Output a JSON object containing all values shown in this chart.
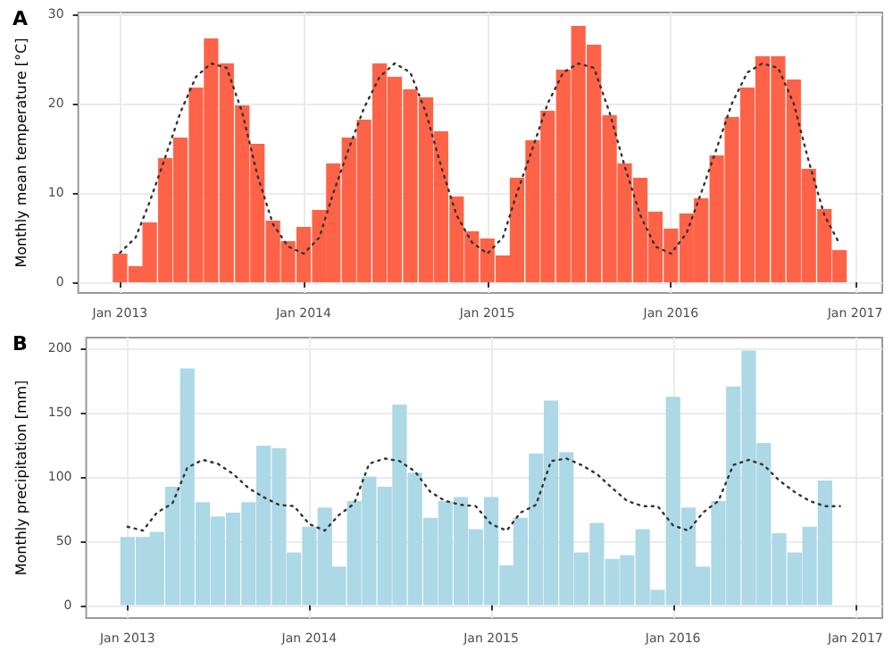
{
  "chart_data": [
    {
      "type": "bar",
      "title": "A",
      "ylabel": "Monthly mean temperature [°C]",
      "x": [
        "2013-01",
        "2013-02",
        "2013-03",
        "2013-04",
        "2013-05",
        "2013-06",
        "2013-07",
        "2013-08",
        "2013-09",
        "2013-10",
        "2013-11",
        "2013-12",
        "2014-01",
        "2014-02",
        "2014-03",
        "2014-04",
        "2014-05",
        "2014-06",
        "2014-07",
        "2014-08",
        "2014-09",
        "2014-10",
        "2014-11",
        "2014-12",
        "2015-01",
        "2015-02",
        "2015-03",
        "2015-04",
        "2015-05",
        "2015-06",
        "2015-07",
        "2015-08",
        "2015-09",
        "2015-10",
        "2015-11",
        "2015-12",
        "2016-01",
        "2016-02",
        "2016-03",
        "2016-04",
        "2016-05",
        "2016-06",
        "2016-07",
        "2016-08",
        "2016-09",
        "2016-10",
        "2016-11",
        "2016-12"
      ],
      "series": [
        {
          "color": "#ff6347",
          "values": [
            3.2,
            1.8,
            6.7,
            13.9,
            16.2,
            21.8,
            27.3,
            24.5,
            19.8,
            15.5,
            6.9,
            4.6,
            6.2,
            8.1,
            13.3,
            16.2,
            18.2,
            24.5,
            23.0,
            21.6,
            20.7,
            16.9,
            9.6,
            5.7,
            4.9,
            3.0,
            11.7,
            15.9,
            19.2,
            23.8,
            28.7,
            26.6,
            18.7,
            13.3,
            11.7,
            7.9,
            6.0,
            7.7,
            9.4,
            14.2,
            18.5,
            21.8,
            25.3,
            25.3,
            22.7,
            12.7,
            8.2,
            3.6
          ]
        },
        {
          "type": "line",
          "color": "#333333",
          "values": [
            3.3,
            5,
            9,
            14,
            19,
            23,
            24.5,
            24,
            19,
            12,
            6.5,
            4,
            3.2,
            5,
            10,
            15,
            19.5,
            23,
            24.5,
            23.5,
            19,
            13,
            7.5,
            4.5,
            3.2,
            5,
            10,
            15,
            20,
            23.5,
            24.5,
            24,
            19,
            13,
            7.5,
            4,
            3.2,
            5.5,
            10,
            15,
            20,
            23.5,
            24.5,
            24,
            20,
            13.5,
            7.5,
            4.3
          ]
        }
      ],
      "xlim": [
        "2012-10-10",
        "2017-02-24"
      ],
      "xticks": [
        {
          "value": "2013-01",
          "label": "Jan 2013"
        },
        {
          "value": "2014-01",
          "label": "Jan 2014"
        },
        {
          "value": "2015-01",
          "label": "Jan 2015"
        },
        {
          "value": "2016-01",
          "label": "Jan 2016"
        },
        {
          "value": "2017-01",
          "label": "Jan 2017"
        }
      ],
      "ylim": [
        -1.2,
        30.2
      ],
      "yticks": [
        0,
        10,
        20,
        30
      ],
      "grid": true,
      "marker": "none",
      "line_style": "dotted"
    },
    {
      "type": "bar",
      "title": "B",
      "ylabel": "Monthly precipitation [mm]",
      "x": [
        "2013-01",
        "2013-02",
        "2013-03",
        "2013-04",
        "2013-05",
        "2013-06",
        "2013-07",
        "2013-08",
        "2013-09",
        "2013-10",
        "2013-11",
        "2013-12",
        "2014-01",
        "2014-02",
        "2014-03",
        "2014-04",
        "2014-05",
        "2014-06",
        "2014-07",
        "2014-08",
        "2014-09",
        "2014-10",
        "2014-11",
        "2014-12",
        "2015-01",
        "2015-02",
        "2015-03",
        "2015-04",
        "2015-05",
        "2015-06",
        "2015-07",
        "2015-08",
        "2015-09",
        "2015-10",
        "2015-11",
        "2015-12",
        "2016-01",
        "2016-02",
        "2016-03",
        "2016-04",
        "2016-05",
        "2016-06",
        "2016-07",
        "2016-08",
        "2016-09",
        "2016-10",
        "2016-11",
        "2016-12"
      ],
      "series": [
        {
          "color": "#add8e6",
          "values": [
            53,
            53,
            57,
            92,
            184,
            80,
            69,
            72,
            80,
            124,
            122,
            41,
            61,
            76,
            30,
            81,
            100,
            92,
            156,
            103,
            68,
            81,
            84,
            59,
            84,
            31,
            68,
            118,
            159,
            119,
            41,
            64,
            36,
            39,
            59,
            12,
            162,
            76,
            30,
            81,
            170,
            198,
            126,
            56,
            41,
            61,
            97,
            0
          ]
        },
        {
          "type": "line",
          "color": "#333333",
          "values": [
            61,
            58,
            72,
            79,
            107,
            113,
            110,
            102,
            91,
            84,
            78,
            77,
            63,
            58,
            70,
            79,
            110,
            114,
            112,
            104,
            88,
            81,
            78,
            77,
            63,
            58,
            72,
            78,
            112,
            114,
            109,
            102,
            91,
            81,
            77,
            77,
            62,
            58,
            72,
            81,
            109,
            113,
            109,
            97,
            88,
            81,
            77,
            77
          ]
        }
      ],
      "xlim": [
        "2012-10-10",
        "2017-02-24"
      ],
      "xticks": [
        {
          "value": "2013-01",
          "label": "Jan 2013"
        },
        {
          "value": "2014-01",
          "label": "Jan 2014"
        },
        {
          "value": "2015-01",
          "label": "Jan 2015"
        },
        {
          "value": "2016-01",
          "label": "Jan 2016"
        },
        {
          "value": "2017-01",
          "label": "Jan 2017"
        }
      ],
      "ylim": [
        -10,
        208
      ],
      "yticks": [
        0,
        50,
        100,
        150,
        200
      ],
      "grid": true,
      "marker": "none",
      "line_style": "dotted"
    }
  ]
}
